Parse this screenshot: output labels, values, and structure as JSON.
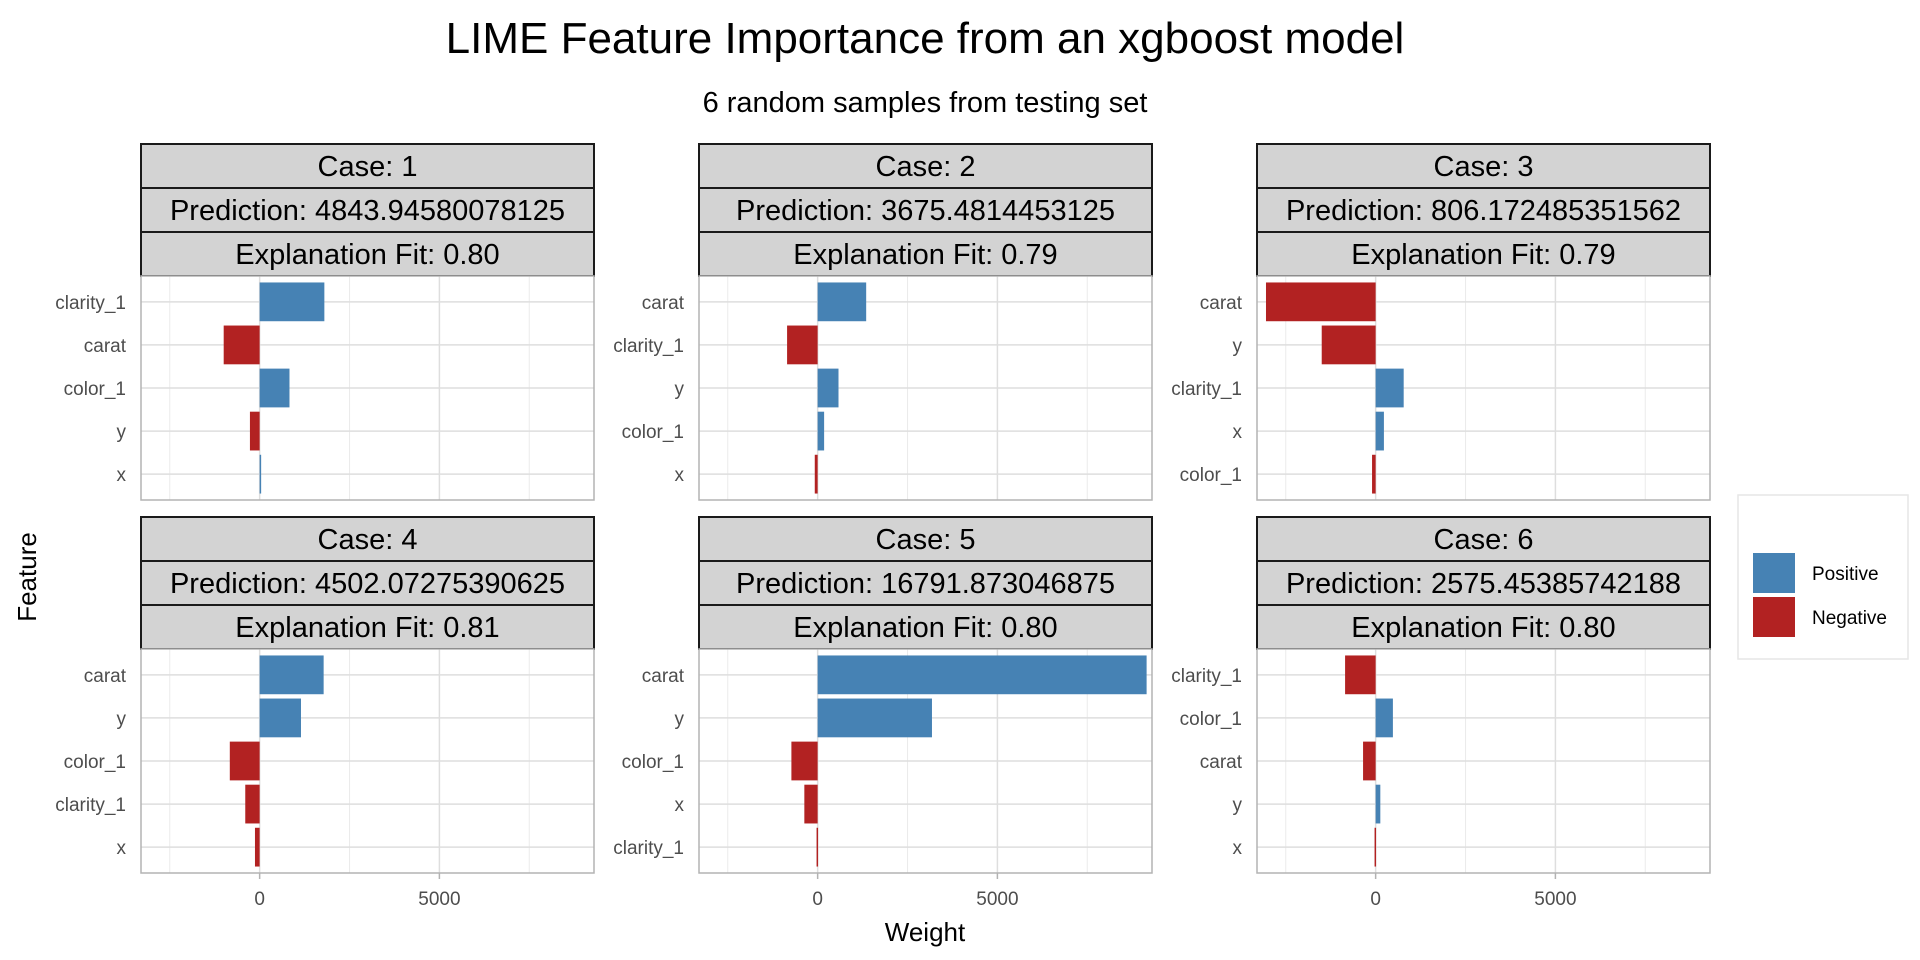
{
  "chart_data": {
    "type": "bar",
    "title": "LIME Feature Importance from an xgboost model",
    "subtitle": "6 random samples from testing set",
    "xlabel": "Weight",
    "ylabel": "Feature",
    "xlim": [
      -3300,
      9300
    ],
    "x_ticks": [
      0,
      5000
    ],
    "x_tick_labels": [
      "0",
      "5000"
    ],
    "grid": true,
    "legend": {
      "position": "right",
      "entries": [
        {
          "label": "Positive",
          "color": "#4682B4"
        },
        {
          "label": "Negative",
          "color": "#B22222"
        }
      ]
    },
    "colors": {
      "positive": "#4682B4",
      "negative": "#B22222",
      "strip_fill": "#D3D3D3"
    },
    "panels": [
      {
        "case_label": "Case: 1",
        "prediction_label": "Prediction: 4843.94580078125",
        "fit_label": "Explanation Fit: 0.80",
        "features": [
          "clarity_1",
          "carat",
          "color_1",
          "y",
          "x"
        ],
        "values": [
          1800,
          -1000,
          830,
          -270,
          25
        ]
      },
      {
        "case_label": "Case: 2",
        "prediction_label": "Prediction: 3675.4814453125",
        "fit_label": "Explanation Fit: 0.79",
        "features": [
          "carat",
          "clarity_1",
          "y",
          "color_1",
          "x"
        ],
        "values": [
          1350,
          -850,
          580,
          180,
          -80
        ]
      },
      {
        "case_label": "Case: 3",
        "prediction_label": "Prediction: 806.172485351562",
        "fit_label": "Explanation Fit: 0.79",
        "features": [
          "carat",
          "y",
          "clarity_1",
          "x",
          "color_1"
        ],
        "values": [
          -3050,
          -1500,
          780,
          230,
          -100
        ]
      },
      {
        "case_label": "Case: 4",
        "prediction_label": "Prediction: 4502.07275390625",
        "fit_label": "Explanation Fit: 0.81",
        "features": [
          "carat",
          "y",
          "color_1",
          "clarity_1",
          "x"
        ],
        "values": [
          1780,
          1150,
          -830,
          -400,
          -130
        ]
      },
      {
        "case_label": "Case: 5",
        "prediction_label": "Prediction: 16791.873046875",
        "fit_label": "Explanation Fit: 0.80",
        "features": [
          "carat",
          "y",
          "color_1",
          "x",
          "clarity_1"
        ],
        "values": [
          9150,
          3180,
          -730,
          -370,
          -30
        ]
      },
      {
        "case_label": "Case: 6",
        "prediction_label": "Prediction: 2575.45385742188",
        "fit_label": "Explanation Fit: 0.80",
        "features": [
          "clarity_1",
          "color_1",
          "carat",
          "y",
          "x"
        ],
        "values": [
          -850,
          480,
          -350,
          130,
          -30
        ]
      }
    ]
  }
}
